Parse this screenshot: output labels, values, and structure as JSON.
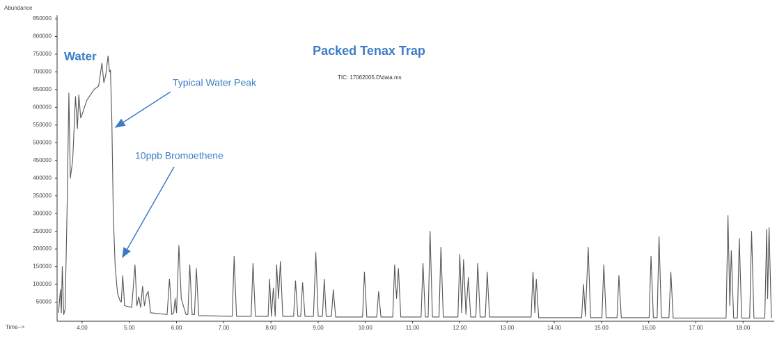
{
  "chart_data": {
    "type": "line",
    "title": "Packed Tenax Trap",
    "y_label": "Abundance",
    "x_label": "Time-->",
    "annotations": [
      "Water",
      "Typical Water Peak",
      "10ppb Bromoethene",
      "TIC: 17062005.D\\data.ms"
    ],
    "color": "#555555",
    "xlim": [
      3.47,
      18.63
    ],
    "ylim": [
      0,
      850000
    ],
    "xticks": [
      {
        "value": 4,
        "label": "4.00"
      },
      {
        "value": 5,
        "label": "5.00"
      },
      {
        "value": 6,
        "label": "6.00"
      },
      {
        "value": 7,
        "label": "7.00"
      },
      {
        "value": 8,
        "label": "8.00"
      },
      {
        "value": 9,
        "label": "9.00"
      },
      {
        "value": 10,
        "label": "10.00"
      },
      {
        "value": 11,
        "label": "11.00"
      },
      {
        "value": 12,
        "label": "12.00"
      },
      {
        "value": 13,
        "label": "13.00"
      },
      {
        "value": 14,
        "label": "14.00"
      },
      {
        "value": 15,
        "label": "15.00"
      },
      {
        "value": 16,
        "label": "16.00"
      },
      {
        "value": 17,
        "label": "17.00"
      },
      {
        "value": 18,
        "label": "18.00"
      }
    ],
    "yticks": [
      50000,
      100000,
      150000,
      200000,
      250000,
      300000,
      350000,
      400000,
      450000,
      500000,
      550000,
      600000,
      650000,
      700000,
      750000,
      800000,
      850000
    ],
    "x": [
      3.5,
      3.54,
      3.56,
      3.58,
      3.61,
      3.64,
      3.68,
      3.72,
      3.75,
      3.8,
      3.86,
      3.9,
      3.93,
      3.97,
      4.0,
      4.1,
      4.25,
      4.35,
      4.42,
      4.46,
      4.5,
      4.55,
      4.58,
      4.6,
      4.63,
      4.66,
      4.7,
      4.75,
      4.8,
      4.83,
      4.86,
      4.9,
      5.05,
      5.12,
      5.16,
      5.2,
      5.24,
      5.28,
      5.32,
      5.36,
      5.4,
      5.45,
      5.8,
      5.85,
      5.9,
      5.94,
      5.97,
      6.0,
      6.05,
      6.1,
      6.2,
      6.24,
      6.28,
      6.33,
      6.38,
      6.42,
      6.47,
      7.18,
      7.22,
      7.27,
      7.58,
      7.62,
      7.67,
      7.94,
      7.97,
      8.01,
      8.05,
      8.09,
      8.12,
      8.16,
      8.2,
      8.25,
      8.48,
      8.52,
      8.57,
      8.63,
      8.67,
      8.72,
      8.9,
      8.95,
      9.0,
      9.09,
      9.13,
      9.17,
      9.28,
      9.32,
      9.37,
      9.94,
      9.98,
      10.03,
      10.24,
      10.28,
      10.33,
      10.58,
      10.62,
      10.66,
      10.7,
      10.75,
      11.18,
      11.22,
      11.27,
      11.33,
      11.37,
      11.42,
      11.56,
      11.6,
      11.65,
      11.96,
      12.0,
      12.04,
      12.08,
      12.13,
      12.18,
      12.23,
      12.34,
      12.38,
      12.43,
      12.54,
      12.58,
      12.63,
      13.51,
      13.55,
      13.59,
      13.62,
      13.67,
      14.58,
      14.62,
      14.66,
      14.72,
      14.77,
      15.01,
      15.05,
      15.1,
      15.33,
      15.37,
      15.42,
      16.01,
      16.05,
      16.1,
      16.18,
      16.22,
      16.27,
      16.43,
      16.47,
      16.52,
      17.64,
      17.68,
      17.72,
      17.75,
      17.8,
      17.88,
      17.92,
      17.97,
      18.14,
      18.18,
      18.23,
      18.46,
      18.5,
      18.52,
      18.55,
      18.6
    ],
    "values": [
      20000,
      85000,
      20000,
      150000,
      15000,
      30000,
      300000,
      640000,
      400000,
      450000,
      630000,
      540000,
      635000,
      570000,
      580000,
      620000,
      650000,
      660000,
      725000,
      670000,
      690000,
      745000,
      700000,
      705000,
      560000,
      300000,
      150000,
      75000,
      55000,
      50000,
      125000,
      40000,
      35000,
      155000,
      40000,
      65000,
      35000,
      95000,
      40000,
      70000,
      80000,
      20000,
      15000,
      115000,
      15000,
      20000,
      60000,
      20000,
      210000,
      60000,
      15000,
      15000,
      155000,
      15000,
      15000,
      145000,
      12000,
      10000,
      180000,
      10000,
      10000,
      160000,
      10000,
      10000,
      115000,
      10000,
      90000,
      10000,
      155000,
      60000,
      165000,
      10000,
      10000,
      110000,
      10000,
      10000,
      105000,
      10000,
      10000,
      190000,
      10000,
      10000,
      115000,
      10000,
      10000,
      85000,
      8000,
      8000,
      135000,
      8000,
      8000,
      80000,
      8000,
      8000,
      155000,
      60000,
      145000,
      8000,
      8000,
      160000,
      8000,
      8000,
      250000,
      8000,
      8000,
      205000,
      8000,
      8000,
      185000,
      20000,
      170000,
      15000,
      120000,
      8000,
      8000,
      160000,
      8000,
      8000,
      135000,
      8000,
      8000,
      135000,
      20000,
      115000,
      6000,
      6000,
      100000,
      10000,
      205000,
      6000,
      6000,
      155000,
      6000,
      6000,
      125000,
      6000,
      6000,
      180000,
      6000,
      6000,
      235000,
      6000,
      6000,
      135000,
      5000,
      5000,
      295000,
      40000,
      195000,
      5000,
      5000,
      230000,
      5000,
      5000,
      250000,
      5000,
      5000,
      255000,
      60000,
      260000,
      5000
    ]
  }
}
